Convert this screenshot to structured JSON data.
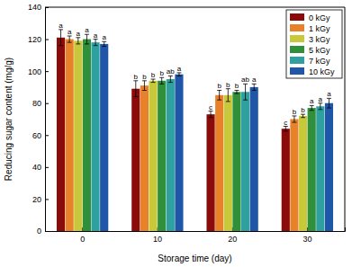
{
  "chart_data": {
    "type": "bar",
    "x_label": "Storage time (day)",
    "y_label": "Reducing sugar content (mg/g)",
    "categories": [
      "0",
      "10",
      "20",
      "30"
    ],
    "ylim": [
      0,
      140
    ],
    "yticks": [
      0,
      20,
      40,
      60,
      80,
      100,
      120,
      140
    ],
    "legend": "upper right",
    "series": [
      {
        "name": "0 kGy",
        "color": "#8b0a0a",
        "values": [
          121,
          89,
          73,
          64
        ],
        "errors": [
          5,
          5,
          2,
          1.5
        ],
        "letters": [
          "a",
          "b",
          "c",
          "c"
        ]
      },
      {
        "name": "1 kGy",
        "color": "#e8822a",
        "values": [
          120,
          91,
          85,
          70
        ],
        "errors": [
          2,
          3,
          3,
          2
        ],
        "letters": [
          "a",
          "b",
          "b",
          "b"
        ]
      },
      {
        "name": "3 kGy",
        "color": "#c9c83a",
        "values": [
          119,
          94,
          85,
          72
        ],
        "errors": [
          2,
          1,
          4,
          1
        ],
        "letters": [
          "a",
          "b",
          "b",
          "b"
        ]
      },
      {
        "name": "5 kGy",
        "color": "#2f8f3a",
        "values": [
          120,
          94,
          87,
          77
        ],
        "errors": [
          3,
          2,
          1,
          1.5
        ],
        "letters": [
          "a",
          "b",
          "b",
          "a"
        ]
      },
      {
        "name": "7 kGy",
        "color": "#2fa0a0",
        "values": [
          118,
          95,
          87,
          78
        ],
        "errors": [
          2,
          2,
          5,
          2
        ],
        "letters": [
          "a",
          "ab",
          "ab",
          "a"
        ]
      },
      {
        "name": "10 kGy",
        "color": "#1f56a8",
        "values": [
          117,
          98,
          90,
          80
        ],
        "errors": [
          1.5,
          1,
          2,
          3
        ],
        "letters": [
          "a",
          "a",
          "a",
          "a"
        ]
      }
    ]
  }
}
